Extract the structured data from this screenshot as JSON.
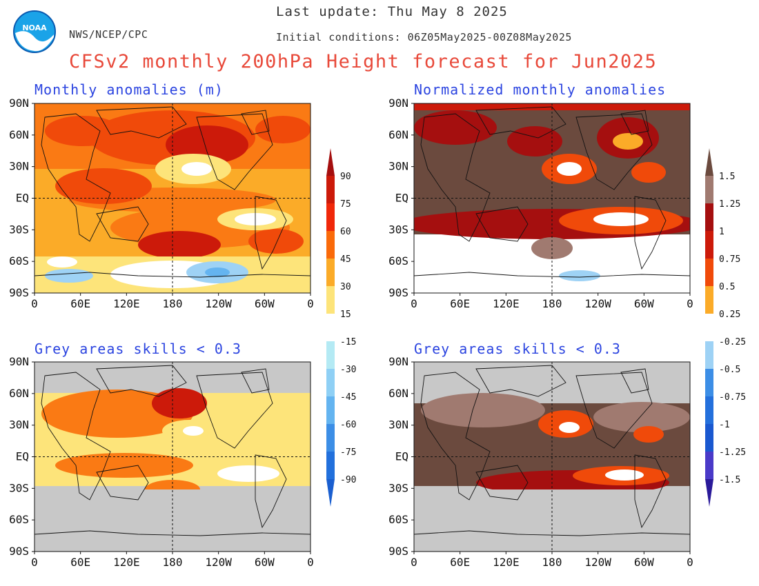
{
  "header": {
    "last_update": "Last update: Thu May 8 2025",
    "org": "NWS/NCEP/CPC",
    "initial_conditions": "Initial conditions: 06Z05May2025-00Z08May2025",
    "title": "CFSv2 monthly 200hPa Height forecast for Jun2025",
    "logo_text": "NOAA"
  },
  "panels": [
    {
      "key": "tl",
      "title": "Monthly anomalies (m)"
    },
    {
      "key": "tr",
      "title": "Normalized monthly anomalies"
    },
    {
      "key": "bl",
      "title": "Grey areas skills < 0.3"
    },
    {
      "key": "br",
      "title": "Grey areas skills < 0.3"
    }
  ],
  "axes": {
    "lat_labels": [
      "90N",
      "60N",
      "30N",
      "EQ",
      "30S",
      "60S",
      "90S"
    ],
    "lon_labels": [
      "0",
      "60E",
      "120E",
      "180",
      "120W",
      "60W",
      "0"
    ]
  },
  "colorbar_left": {
    "labels": [
      "90",
      "75",
      "60",
      "45",
      "30",
      "15",
      "-15",
      "-30",
      "-45",
      "-60",
      "-75",
      "-90"
    ],
    "colors": [
      "#a50f0f",
      "#cc1a0a",
      "#f0280a",
      "#fa6a0a",
      "#fbab28",
      "#fde47a",
      "#ffffff",
      "#b4eaf4",
      "#8fd0f5",
      "#64b4f0",
      "#3c8ee6",
      "#2270dc",
      "#1a5fd0"
    ]
  },
  "colorbar_right": {
    "labels": [
      "1.5",
      "1.25",
      "1",
      "0.75",
      "0.5",
      "0.25",
      "-0.25",
      "-0.5",
      "-0.75",
      "-1",
      "-1.25",
      "-1.5"
    ],
    "colors": [
      "#6b4a3e",
      "#a07a70",
      "#a50f0f",
      "#cc1a0a",
      "#f04a0a",
      "#fbab28",
      "#ffffff",
      "#9ed2f5",
      "#3c8ee6",
      "#2470dc",
      "#1a58d0",
      "#4a3ac8",
      "#2a1a9a"
    ]
  },
  "map_colors": {
    "deep_red": "#cc1a0a",
    "red": "#f04a0a",
    "orange": "#fa7a14",
    "gold": "#fbab28",
    "yellow": "#fde47a",
    "white": "#ffffff",
    "light_blue": "#9ed2f5",
    "mid_blue": "#64b4f0",
    "brown": "#6b4a3e",
    "rose": "#a07a70",
    "maroon": "#a50f0f",
    "grey": "#c8c8c8"
  }
}
